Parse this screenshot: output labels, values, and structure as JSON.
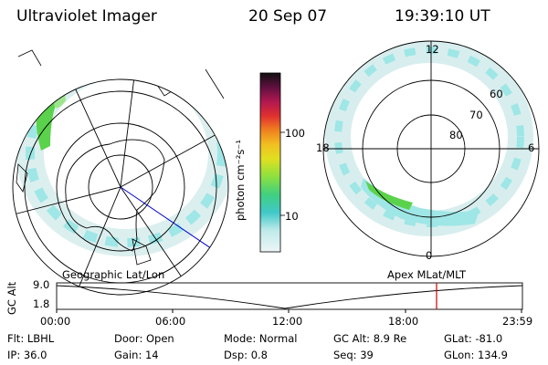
{
  "header": {
    "title": "Ultraviolet Imager",
    "date": "20 Sep 07",
    "time": "19:39:10 UT"
  },
  "colorbar": {
    "unit_label": "photon cm⁻²s⁻¹",
    "ticks": [
      "100",
      "10"
    ]
  },
  "left_panel": {
    "caption": "Geographic Lat/Lon"
  },
  "right_panel": {
    "caption": "Apex MLat/MLT",
    "mlt_labels": {
      "top": "12",
      "bottom": "0",
      "left": "18",
      "right": "6"
    },
    "lat_labels": [
      "60",
      "70",
      "80"
    ]
  },
  "altitude_plot": {
    "ylabel": "GC Alt",
    "yticks": [
      "9.0",
      "1.8"
    ],
    "xticks": [
      "00:00",
      "06:00",
      "12:00",
      "18:00",
      "23:59"
    ],
    "current_time_marker": "19:39"
  },
  "status": {
    "row1": [
      {
        "label": "Flt:",
        "value": "LBHL"
      },
      {
        "label": "Door:",
        "value": "Open"
      },
      {
        "label": "Mode:",
        "value": "Normal"
      },
      {
        "label": "GC Alt:",
        "value": "8.9 Re"
      },
      {
        "label": "GLat:",
        "value": "-81.0"
      }
    ],
    "row2": [
      {
        "label": "IP:",
        "value": "36.0"
      },
      {
        "label": "Gain:",
        "value": "14"
      },
      {
        "label": "Dsp:",
        "value": "0.8"
      },
      {
        "label": "Seq:",
        "value": "39"
      },
      {
        "label": "GLon:",
        "value": "134.9"
      }
    ]
  },
  "colors": {
    "cyan": "#7fe0e0",
    "pale": "#d8eeee",
    "green": "#5bd24b",
    "marker": "#cc0000",
    "meridian": "#0000cc"
  }
}
